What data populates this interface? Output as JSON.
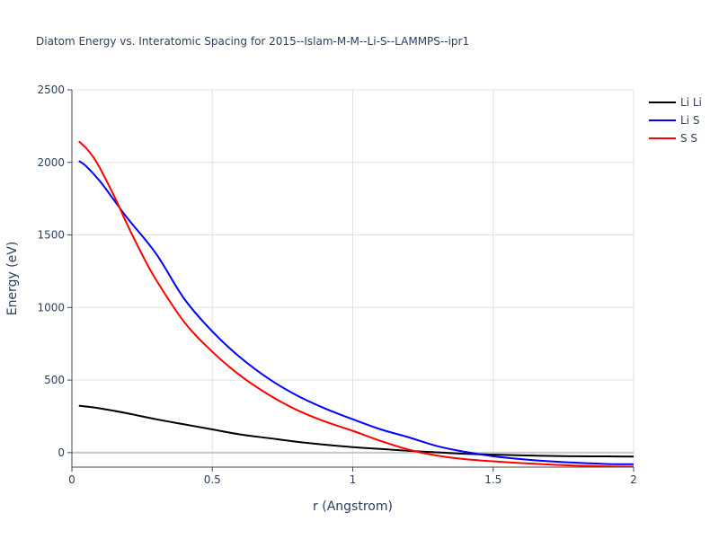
{
  "chart_data": {
    "type": "line",
    "title": "Diatom Energy vs. Interatomic Spacing for 2015--Islam-M-M--Li-S--LAMMPS--ipr1",
    "xlabel": "r (Angstrom)",
    "ylabel": "Energy (eV)",
    "xlim": [
      0,
      2
    ],
    "ylim": [
      -100,
      2500
    ],
    "xticks": [
      0,
      0.5,
      1,
      1.5,
      2
    ],
    "xtick_labels": [
      "0",
      "0.5",
      "1",
      "1.5",
      "2"
    ],
    "yticks": [
      0,
      500,
      1000,
      1500,
      2000,
      2500
    ],
    "ytick_labels": [
      "0",
      "500",
      "1000",
      "1500",
      "2000",
      "2500"
    ],
    "grid": true,
    "legend_position": "top-right",
    "series": [
      {
        "name": "Li Li",
        "color": "#000000",
        "x": [
          0.025,
          0.1,
          0.2,
          0.3,
          0.4,
          0.5,
          0.6,
          0.7,
          0.8,
          0.9,
          1.0,
          1.1,
          1.2,
          1.3,
          1.4,
          1.5,
          1.6,
          1.7,
          1.8,
          1.9,
          2.0
        ],
        "y": [
          323,
          305,
          270,
          230,
          195,
          160,
          125,
          100,
          75,
          55,
          38,
          25,
          12,
          2,
          -8,
          -14,
          -19,
          -23,
          -25,
          -26,
          -27
        ]
      },
      {
        "name": "Li S",
        "color": "#0000ff",
        "x": [
          0.025,
          0.05,
          0.1,
          0.15,
          0.2,
          0.3,
          0.4,
          0.5,
          0.6,
          0.7,
          0.8,
          0.9,
          1.0,
          1.1,
          1.2,
          1.3,
          1.4,
          1.5,
          1.6,
          1.7,
          1.8,
          1.9,
          2.0
        ],
        "y": [
          2010,
          1975,
          1870,
          1740,
          1610,
          1370,
          1060,
          835,
          655,
          510,
          395,
          305,
          230,
          160,
          105,
          45,
          5,
          -25,
          -45,
          -60,
          -70,
          -78,
          -80
        ]
      },
      {
        "name": "S S",
        "color": "#ff0000",
        "x": [
          0.025,
          0.05,
          0.075,
          0.1,
          0.15,
          0.2,
          0.25,
          0.3,
          0.4,
          0.5,
          0.6,
          0.7,
          0.8,
          0.9,
          1.0,
          1.1,
          1.2,
          1.3,
          1.4,
          1.5,
          1.6,
          1.7,
          1.8,
          1.9,
          2.0
        ],
        "y": [
          2145,
          2100,
          2040,
          1960,
          1770,
          1560,
          1365,
          1190,
          900,
          695,
          530,
          400,
          295,
          215,
          150,
          80,
          20,
          -20,
          -45,
          -60,
          -72,
          -82,
          -90,
          -95,
          -97
        ]
      }
    ]
  }
}
